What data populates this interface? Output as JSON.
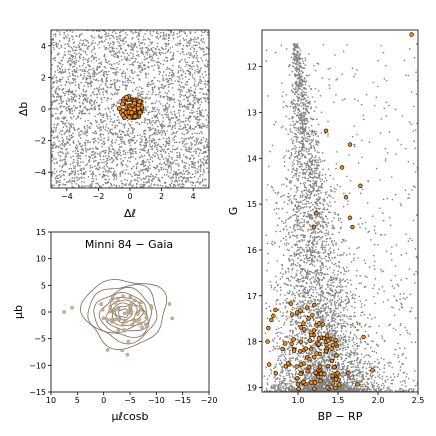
{
  "chart_data": [
    {
      "type": "scatter",
      "panel": "sky-position",
      "title": "",
      "xlabel": "Δℓ",
      "ylabel": "Δb",
      "xlim": [
        -5,
        5
      ],
      "ylim": [
        -5,
        5
      ],
      "xticks": [
        -4,
        -2,
        0,
        2,
        4
      ],
      "yticks": [
        -4,
        -2,
        0,
        2,
        4
      ],
      "xtick_labels": [
        "−4",
        "−2",
        "0",
        "2",
        "4"
      ],
      "ytick_labels": [
        "−4",
        "−2",
        "0",
        "2",
        "4"
      ],
      "series": [
        {
          "role": "field",
          "color": "#808080",
          "n": 3500,
          "extent": 5
        },
        {
          "role": "members",
          "color": "#f08c1e",
          "n": 75,
          "radius": 0.75,
          "center": [
            0.05,
            0.05
          ]
        }
      ]
    },
    {
      "type": "scatter",
      "panel": "proper-motion",
      "title": "Minni 84 − Gaia",
      "xlabel": "μℓcosb",
      "ylabel": "μb",
      "xlim": [
        10,
        -20
      ],
      "ylim": [
        -15,
        15
      ],
      "xticks": [
        10,
        5,
        0,
        -5,
        -10,
        -15,
        -20
      ],
      "yticks": [
        -15,
        -10,
        -5,
        0,
        5,
        10,
        15
      ],
      "xtick_labels": [
        "10",
        "5",
        "0",
        "−5",
        "−10",
        "−15",
        "−20"
      ],
      "ytick_labels": [
        "−15",
        "−10",
        "−5",
        "0",
        "5",
        "10",
        "15"
      ],
      "contour_center": [
        -4.0,
        -0.2
      ],
      "series": [
        {
          "role": "members",
          "color": "#d2b48c",
          "n": 60,
          "center": [
            -4.0,
            -0.5
          ],
          "spread": [
            2.5,
            2.5
          ]
        }
      ]
    },
    {
      "type": "scatter",
      "panel": "color-magnitude",
      "title": "",
      "xlabel": "BP − RP",
      "ylabel": "G",
      "xlim": [
        0.55,
        2.5
      ],
      "ylim": [
        19.1,
        11.2
      ],
      "xticks": [
        1.0,
        1.5,
        2.0,
        2.5
      ],
      "yticks": [
        12,
        13,
        14,
        15,
        16,
        17,
        18,
        19
      ],
      "xtick_labels": [
        "1.0",
        "1.5",
        "2.0",
        "2.5"
      ],
      "ytick_labels": [
        "12",
        "13",
        "14",
        "15",
        "16",
        "17",
        "18",
        "19"
      ],
      "series": [
        {
          "role": "field",
          "color": "#808080",
          "n": 5200
        },
        {
          "role": "members",
          "color": "#f08c1e",
          "n": 110,
          "bright_stars": [
            {
              "x": 2.42,
              "y": 11.3
            },
            {
              "x": 1.35,
              "y": 13.4
            },
            {
              "x": 1.65,
              "y": 13.7
            },
            {
              "x": 1.55,
              "y": 14.2
            },
            {
              "x": 1.78,
              "y": 14.6
            },
            {
              "x": 1.6,
              "y": 14.85
            },
            {
              "x": 1.65,
              "y": 15.3
            },
            {
              "x": 1.68,
              "y": 15.5
            },
            {
              "x": 1.23,
              "y": 15.2
            },
            {
              "x": 1.2,
              "y": 15.5
            },
            {
              "x": 1.82,
              "y": 17.9
            },
            {
              "x": 0.62,
              "y": 18.0
            },
            {
              "x": 0.64,
              "y": 18.5
            }
          ]
        }
      ]
    }
  ]
}
